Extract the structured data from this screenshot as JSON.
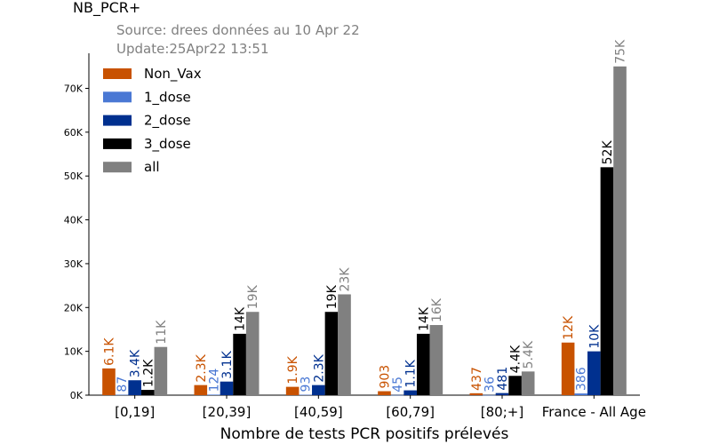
{
  "chart_data": {
    "type": "bar",
    "title": "NB_PCR+",
    "subtitle_lines": [
      "Source: drees données au 10 Apr 22",
      "Update:25Apr22 13:51"
    ],
    "xlabel": "Nombre de tests PCR positifs prélevés",
    "ylabel": "",
    "ylim": [
      0,
      78000
    ],
    "yticks": [
      0,
      10000,
      20000,
      30000,
      40000,
      50000,
      60000,
      70000
    ],
    "ytick_labels": [
      "0K",
      "10K",
      "20K",
      "30K",
      "40K",
      "50K",
      "60K",
      "70K"
    ],
    "categories": [
      "[0,19]",
      "[20,39]",
      "[40,59]",
      "[60,79]",
      "[80;+]",
      "France - All Age"
    ],
    "legend_position": "top-left",
    "grid": false,
    "series": [
      {
        "name": "Non_Vax",
        "color": "#c85200",
        "values": [
          6100,
          2300,
          1900,
          903,
          437,
          12000
        ],
        "labels": [
          "6.1K",
          "2.3K",
          "1.9K",
          "903",
          "437",
          "12K"
        ]
      },
      {
        "name": "1_dose",
        "color": "#4a78d4",
        "values": [
          87,
          124,
          93,
          45,
          36,
          386
        ],
        "labels": [
          "87",
          "124",
          "93",
          "45",
          "36",
          "386"
        ]
      },
      {
        "name": "2_dose",
        "color": "#00308f",
        "values": [
          3400,
          3100,
          2300,
          1100,
          481,
          10000
        ],
        "labels": [
          "3.4K",
          "3.1K",
          "2.3K",
          "1.1K",
          "481",
          "10K"
        ]
      },
      {
        "name": "3_dose",
        "color": "#000000",
        "values": [
          1200,
          14000,
          19000,
          14000,
          4400,
          52000
        ],
        "labels": [
          "1.2K",
          "14K",
          "19K",
          "14K",
          "4.4K",
          "52K"
        ]
      },
      {
        "name": "all",
        "color": "#808080",
        "values": [
          11000,
          19000,
          23000,
          16000,
          5400,
          75000
        ],
        "labels": [
          "11K",
          "19K",
          "23K",
          "16K",
          "5.4K",
          "75K"
        ]
      }
    ]
  }
}
